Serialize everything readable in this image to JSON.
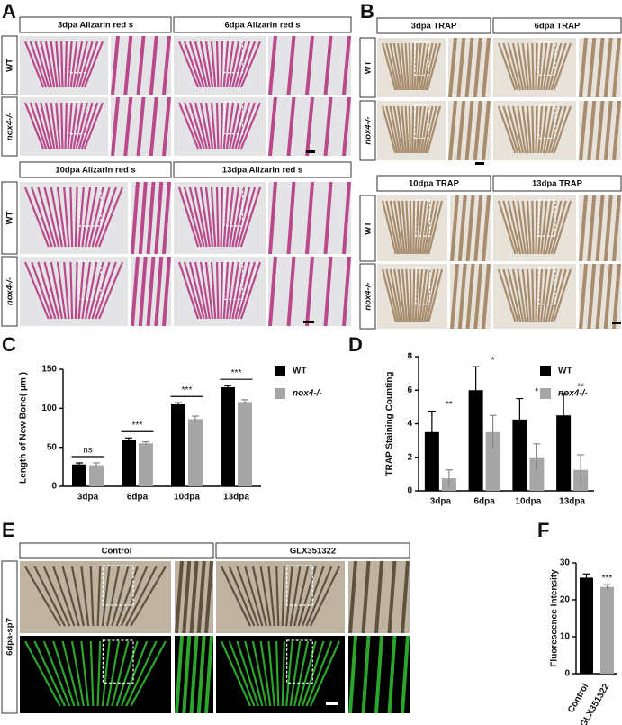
{
  "panels": {
    "A": {
      "letter": "A",
      "blocks": [
        {
          "headers": [
            "3dpa Alizarin red s",
            "6dpa Alizarin red s"
          ],
          "rows": [
            "WT",
            "nox4-/-"
          ]
        },
        {
          "headers": [
            "10dpa Alizarin red s",
            "13dpa Alizarin red s"
          ],
          "rows": [
            "WT",
            "nox4-/-"
          ]
        }
      ]
    },
    "B": {
      "letter": "B",
      "blocks": [
        {
          "headers": [
            "3dpa TRAP",
            "6dpa TRAP"
          ],
          "rows": [
            "WT",
            "nox4-/-"
          ]
        },
        {
          "headers": [
            "10dpa TRAP",
            "13dpa TRAP"
          ],
          "rows": [
            "WT",
            "nox4-/-"
          ]
        }
      ]
    },
    "E": {
      "letter": "E",
      "headers": [
        "Control",
        "GLX351322"
      ],
      "side_label": "6dpa-sp7"
    }
  },
  "chart_data": [
    {
      "type": "bar",
      "panel_label": "C",
      "ylabel": "Length of  New Bone( μm )",
      "categories": [
        "3dpa",
        "6dpa",
        "10dpa",
        "13dpa"
      ],
      "series": [
        {
          "name": "WT",
          "color": "#000000",
          "values": [
            28,
            60,
            105,
            127
          ],
          "errors": [
            2,
            2,
            2,
            2
          ]
        },
        {
          "name": "nox4-/-",
          "color": "#a6a6a6",
          "values": [
            27,
            55,
            86,
            108
          ],
          "errors": [
            3,
            2,
            4,
            3
          ]
        }
      ],
      "annotations": [
        "ns",
        "***",
        "***",
        "***"
      ],
      "ylim": [
        0,
        150
      ],
      "yticks": [
        0,
        50,
        100,
        150
      ]
    },
    {
      "type": "bar",
      "panel_label": "D",
      "ylabel": "TRAP Staining Counting",
      "categories": [
        "3dpa",
        "6dpa",
        "10dpa",
        "13dpa"
      ],
      "series": [
        {
          "name": "WT",
          "color": "#000000",
          "values": [
            3.5,
            6,
            4.25,
            4.5
          ],
          "errors": [
            1.25,
            1.4,
            1.25,
            1.3
          ]
        },
        {
          "name": "nox4-/-",
          "color": "#a6a6a6",
          "values": [
            0.75,
            3.5,
            2,
            1.25
          ],
          "errors": [
            0.5,
            1,
            0.8,
            0.9
          ]
        }
      ],
      "annotations": [
        "**",
        "*",
        "*",
        "**"
      ],
      "ylim": [
        0,
        8
      ],
      "yticks": [
        0,
        2,
        4,
        6,
        8
      ]
    },
    {
      "type": "bar",
      "panel_label": "F",
      "ylabel": "Fluorescence Intensity",
      "categories": [
        "Control",
        "GLX351322"
      ],
      "values": [
        26,
        23.5
      ],
      "errors": [
        1,
        0.6
      ],
      "colors": [
        "#000000",
        "#a6a6a6"
      ],
      "annotations": [
        null,
        "***"
      ],
      "ylim": [
        0,
        30
      ],
      "yticks": [
        0,
        10,
        20,
        30
      ]
    }
  ]
}
